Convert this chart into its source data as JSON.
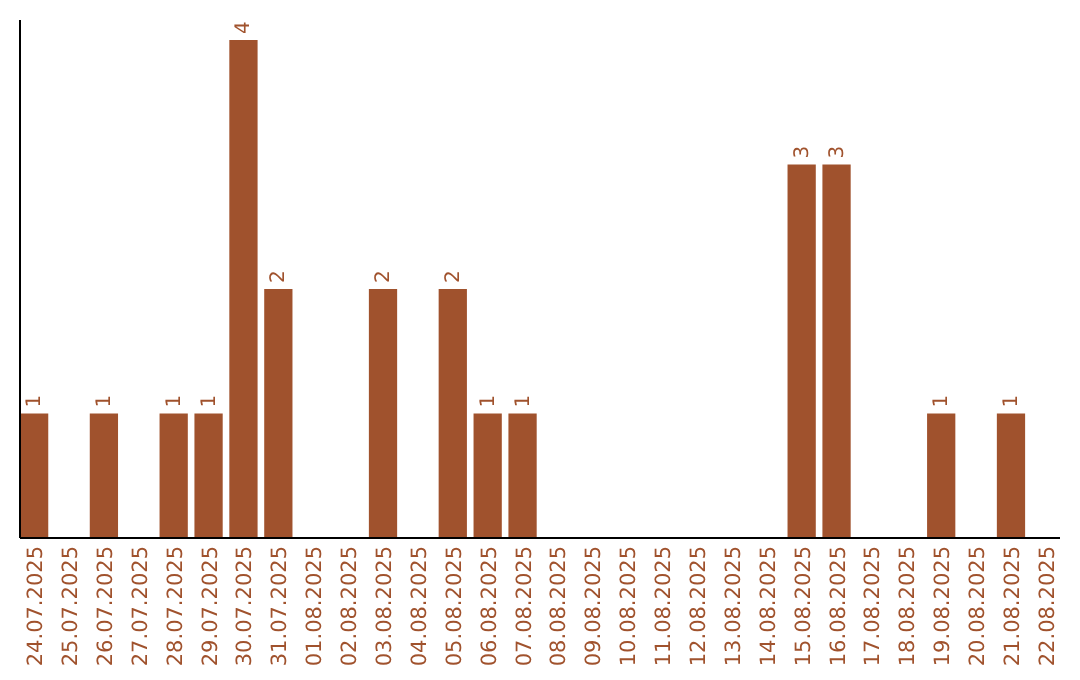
{
  "chart_data": {
    "type": "bar",
    "categories": [
      "24.07.2025",
      "25.07.2025",
      "26.07.2025",
      "27.07.2025",
      "28.07.2025",
      "29.07.2025",
      "30.07.2025",
      "31.07.2025",
      "01.08.2025",
      "02.08.2025",
      "03.08.2025",
      "04.08.2025",
      "05.08.2025",
      "06.08.2025",
      "07.08.2025",
      "08.08.2025",
      "09.08.2025",
      "10.08.2025",
      "11.08.2025",
      "12.08.2025",
      "13.08.2025",
      "14.08.2025",
      "15.08.2025",
      "16.08.2025",
      "17.08.2025",
      "18.08.2025",
      "19.08.2025",
      "20.08.2025",
      "21.08.2025",
      "22.08.2025"
    ],
    "values": [
      1,
      0,
      1,
      0,
      1,
      1,
      4,
      2,
      0,
      0,
      2,
      0,
      2,
      1,
      1,
      0,
      0,
      0,
      0,
      0,
      0,
      0,
      3,
      3,
      0,
      0,
      1,
      0,
      1,
      0
    ],
    "value_labels": [
      "1",
      null,
      "1",
      null,
      "1",
      "1",
      "4",
      "2",
      null,
      null,
      "2",
      null,
      "2",
      "1",
      "1",
      null,
      null,
      null,
      null,
      null,
      null,
      null,
      "3",
      "3",
      null,
      null,
      "1",
      null,
      "1",
      null
    ],
    "color": "#a0522d"
  }
}
